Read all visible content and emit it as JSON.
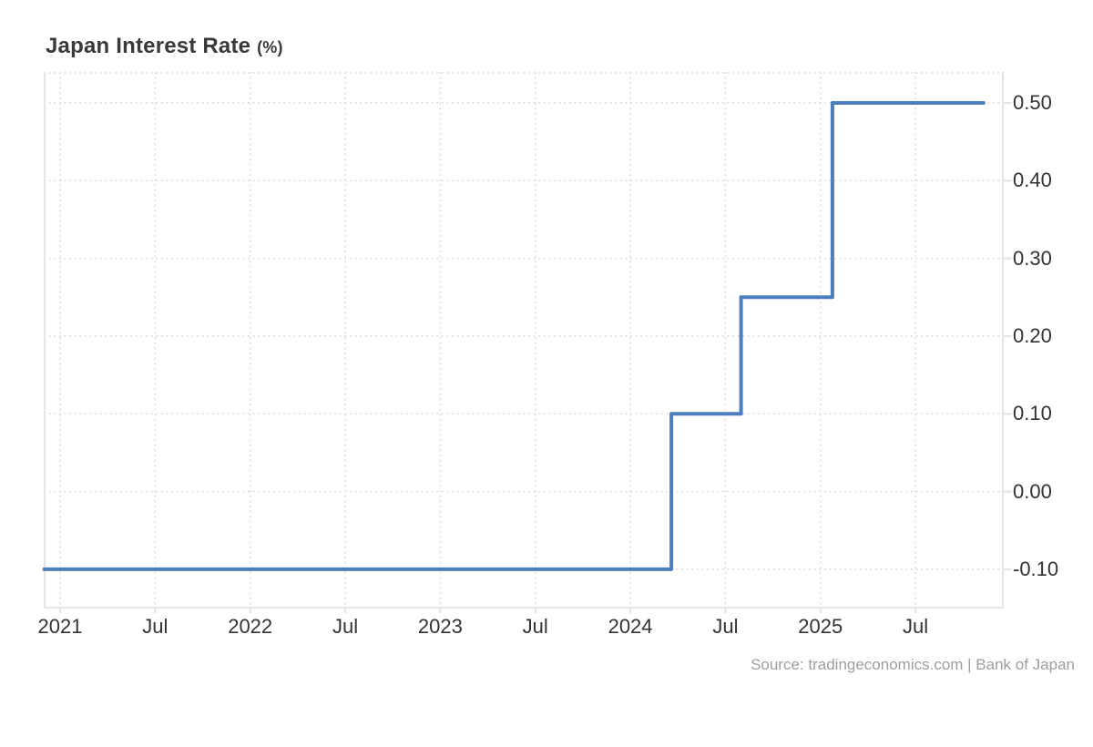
{
  "title": {
    "main": "Japan Interest Rate",
    "unit": "(%)"
  },
  "source": {
    "text": "Source: tradingeconomics.com | Bank of Japan"
  },
  "colors": {
    "background": "#ffffff",
    "line": "#4d7ebe",
    "grid": "#e1e1e1",
    "axis_border": "#e5e5e5",
    "tick_text": "#333333",
    "title_text": "#3a3a3a",
    "source_text": "#9e9e9e"
  },
  "chart_data": {
    "type": "line",
    "step": "after",
    "title": "Japan Interest Rate (%)",
    "series_name": "Japan Interest Rate",
    "unit": "%",
    "grid": true,
    "legend": false,
    "ylim": [
      -0.15,
      0.54
    ],
    "xlim_months_from_jan2021": [
      -1.04,
      59.6
    ],
    "points": [
      {
        "date": "2020-12-01",
        "value": -0.1
      },
      {
        "date": "2024-03-19",
        "value": 0.1
      },
      {
        "date": "2024-07-31",
        "value": 0.25
      },
      {
        "date": "2025-01-24",
        "value": 0.5
      },
      {
        "date": "2025-11-10",
        "value": 0.5
      }
    ],
    "x_ticks": [
      {
        "label": "2021",
        "month": 0
      },
      {
        "label": "Jul",
        "month": 6
      },
      {
        "label": "2022",
        "month": 12
      },
      {
        "label": "Jul",
        "month": 18
      },
      {
        "label": "2023",
        "month": 24
      },
      {
        "label": "Jul",
        "month": 30
      },
      {
        "label": "2024",
        "month": 36
      },
      {
        "label": "Jul",
        "month": 42
      },
      {
        "label": "2025",
        "month": 48
      },
      {
        "label": "Jul",
        "month": 54
      }
    ],
    "y_ticks": [
      {
        "label": "0.50",
        "value": 0.5
      },
      {
        "label": "0.40",
        "value": 0.4
      },
      {
        "label": "0.30",
        "value": 0.3
      },
      {
        "label": "0.20",
        "value": 0.2
      },
      {
        "label": "0.10",
        "value": 0.1
      },
      {
        "label": "0.00",
        "value": 0.0
      },
      {
        "label": "-0.10",
        "value": -0.1
      }
    ]
  }
}
